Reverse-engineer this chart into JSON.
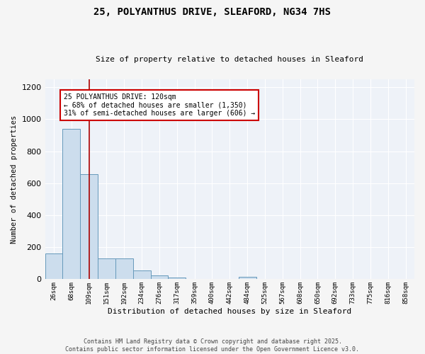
{
  "title_line1": "25, POLYANTHUS DRIVE, SLEAFORD, NG34 7HS",
  "title_line2": "Size of property relative to detached houses in Sleaford",
  "xlabel": "Distribution of detached houses by size in Sleaford",
  "ylabel": "Number of detached properties",
  "bar_color": "#ccdded",
  "bar_edge_color": "#6699bb",
  "background_color": "#eef2f8",
  "grid_color": "#ffffff",
  "fig_background": "#f5f5f5",
  "bin_labels": [
    "26sqm",
    "68sqm",
    "109sqm",
    "151sqm",
    "192sqm",
    "234sqm",
    "276sqm",
    "317sqm",
    "359sqm",
    "400sqm",
    "442sqm",
    "484sqm",
    "525sqm",
    "567sqm",
    "608sqm",
    "650sqm",
    "692sqm",
    "733sqm",
    "775sqm",
    "816sqm",
    "858sqm"
  ],
  "bar_values": [
    160,
    940,
    655,
    130,
    130,
    55,
    25,
    12,
    0,
    0,
    0,
    15,
    0,
    0,
    0,
    0,
    0,
    0,
    0,
    0,
    0
  ],
  "ylim": [
    0,
    1250
  ],
  "yticks": [
    0,
    200,
    400,
    600,
    800,
    1000,
    1200
  ],
  "red_line_x": 2.0,
  "annotation_text": "25 POLYANTHUS DRIVE: 120sqm\n← 68% of detached houses are smaller (1,350)\n31% of semi-detached houses are larger (606) →",
  "annotation_box_color": "#ffffff",
  "annotation_box_edge_color": "#cc0000",
  "footer_line1": "Contains HM Land Registry data © Crown copyright and database right 2025.",
  "footer_line2": "Contains public sector information licensed under the Open Government Licence v3.0."
}
